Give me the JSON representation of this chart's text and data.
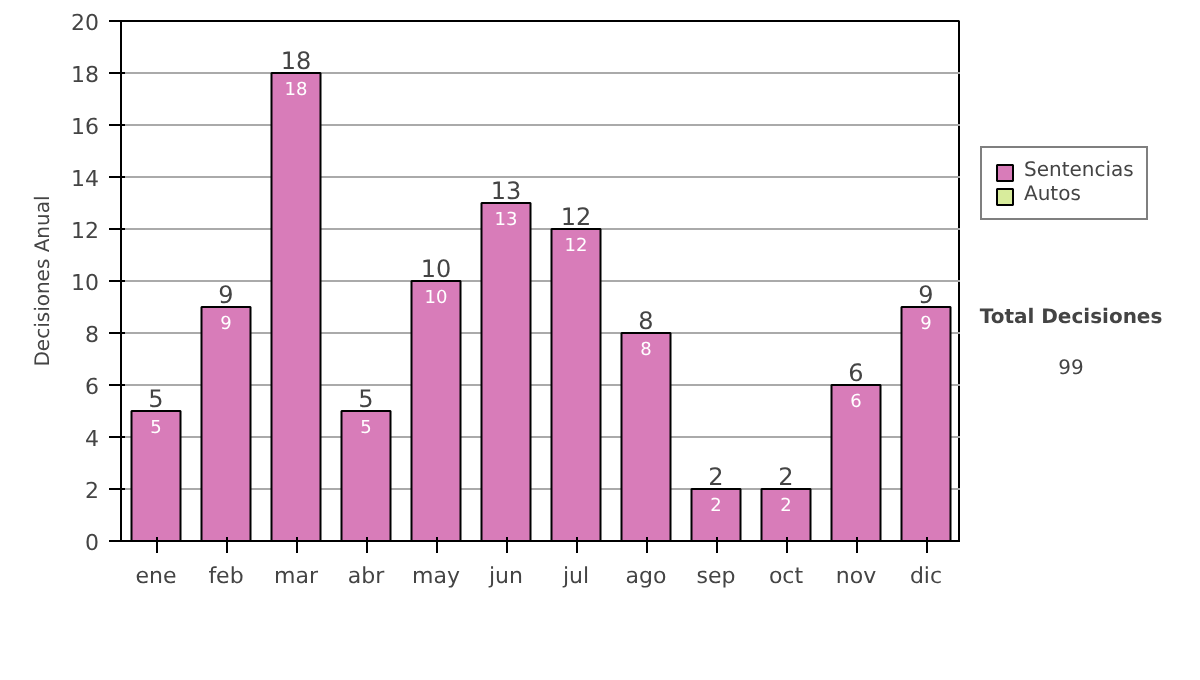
{
  "chart_data": {
    "type": "bar",
    "stacked": true,
    "ylabel": "Decisiones Anual",
    "categories": [
      "ene",
      "feb",
      "mar",
      "abr",
      "may",
      "jun",
      "jul",
      "ago",
      "sep",
      "oct",
      "nov",
      "dic"
    ],
    "series": [
      {
        "name": "Sentencias",
        "color": "#d87cb9",
        "values": [
          5,
          9,
          18,
          5,
          10,
          13,
          12,
          8,
          2,
          2,
          6,
          9
        ],
        "value_labels": [
          "5",
          "9",
          "18",
          "5",
          "10",
          "13",
          "12",
          "8",
          "2",
          "2",
          "6",
          "9"
        ]
      },
      {
        "name": "Autos",
        "color": "#d8ec9c",
        "values": [
          null,
          null,
          null,
          null,
          null,
          null,
          null,
          null,
          null,
          null,
          null,
          null
        ]
      }
    ],
    "totals": [
      "5",
      "9",
      "18",
      "5",
      "10",
      "13",
      "12",
      "8",
      "2",
      "2",
      "6",
      "9"
    ],
    "ylim": [
      0,
      20
    ],
    "yticks": [
      0,
      2,
      4,
      6,
      8,
      10,
      12,
      14,
      16,
      18,
      20
    ],
    "grid": "y",
    "legend": "right",
    "annotations": [
      "Total Decisiones",
      "99"
    ]
  }
}
